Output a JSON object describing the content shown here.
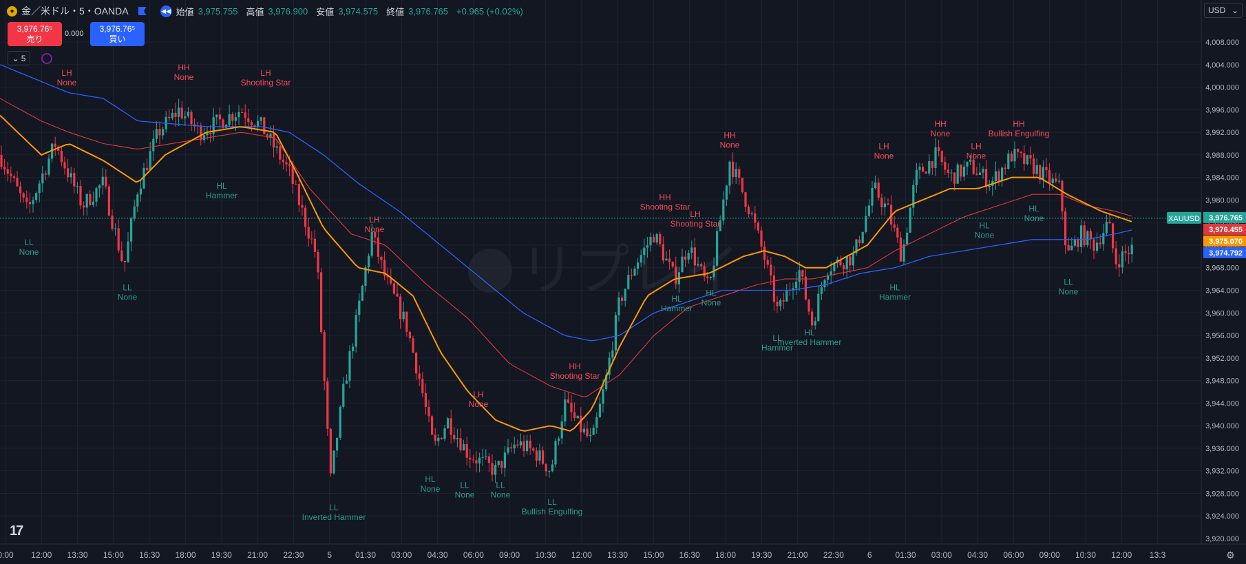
{
  "header": {
    "symbol_title": "金／米ドル・5・OANDA",
    "open_label": "始値",
    "open_value": "3,975.755",
    "high_label": "高値",
    "high_value": "3,976.900",
    "low_label": "安値",
    "low_value": "3,974.575",
    "close_label": "終値",
    "close_value": "3,976.765",
    "change": "+0.965 (+0.02%)"
  },
  "trade": {
    "sell_price": "3,976.76⁵",
    "sell_label": "売り",
    "spread": "0.000",
    "buy_price": "3,976.76⁵",
    "buy_label": "買い"
  },
  "toolbar": {
    "interval": "5",
    "currency": "USD"
  },
  "watermark": "リプレイ",
  "colors": {
    "background": "#131722",
    "grid": "#1e222d",
    "up": "#26a69a",
    "down": "#f23645",
    "ema_orange": "#ff9800",
    "ema_red": "#e0383e",
    "ema_blue": "#2962ff",
    "label_high": "#f44b58",
    "label_low": "#2a9d90"
  },
  "chart_data": {
    "type": "candlestick",
    "symbol": "XAUUSD",
    "ylim": [
      3920,
      4010
    ],
    "y_ticks": [
      "4,008.000",
      "4,004.000",
      "4,000.000",
      "3,996.000",
      "3,992.000",
      "3,988.000",
      "3,984.000",
      "3,980.000",
      "3,976.000",
      "3,972.000",
      "3,968.000",
      "3,964.000",
      "3,960.000",
      "3,956.000",
      "3,952.000",
      "3,948.000",
      "3,944.000",
      "3,940.000",
      "3,936.000",
      "3,932.000",
      "3,928.000",
      "3,924.000",
      "3,920.000"
    ],
    "x_ticks": [
      "0:00",
      "12:00",
      "13:30",
      "15:00",
      "16:30",
      "18:00",
      "19:30",
      "21:00",
      "22:30",
      "5",
      "01:30",
      "03:00",
      "04:30",
      "06:00",
      "09:00",
      "10:30",
      "12:00",
      "13:30",
      "15:00",
      "16:30",
      "18:00",
      "19:30",
      "21:00",
      "22:30",
      "6",
      "01:30",
      "03:00",
      "04:30",
      "06:00",
      "09:00",
      "10:30",
      "12:00",
      "13:3"
    ],
    "price_path_anchors": [
      [
        0,
        3988
      ],
      [
        40,
        3978
      ],
      [
        80,
        3990
      ],
      [
        120,
        3979
      ],
      [
        150,
        3983
      ],
      [
        180,
        3968
      ],
      [
        200,
        3982
      ],
      [
        230,
        3992
      ],
      [
        260,
        3996
      ],
      [
        290,
        3992
      ],
      [
        320,
        3994
      ],
      [
        350,
        3996
      ],
      [
        380,
        3993
      ],
      [
        420,
        3985
      ],
      [
        460,
        3970
      ],
      [
        480,
        3930
      ],
      [
        500,
        3947
      ],
      [
        520,
        3960
      ],
      [
        540,
        3974
      ],
      [
        560,
        3966
      ],
      [
        590,
        3958
      ],
      [
        610,
        3948
      ],
      [
        630,
        3936
      ],
      [
        650,
        3941
      ],
      [
        680,
        3935
      ],
      [
        720,
        3932
      ],
      [
        750,
        3937
      ],
      [
        780,
        3935
      ],
      [
        800,
        3932
      ],
      [
        820,
        3944
      ],
      [
        840,
        3940
      ],
      [
        860,
        3937
      ],
      [
        880,
        3948
      ],
      [
        900,
        3962
      ],
      [
        920,
        3968
      ],
      [
        950,
        3974
      ],
      [
        980,
        3966
      ],
      [
        1000,
        3972
      ],
      [
        1030,
        3964
      ],
      [
        1060,
        3987
      ],
      [
        1090,
        3978
      ],
      [
        1110,
        3970
      ],
      [
        1130,
        3960
      ],
      [
        1160,
        3968
      ],
      [
        1180,
        3958
      ],
      [
        1200,
        3968
      ],
      [
        1240,
        3970
      ],
      [
        1270,
        3982
      ],
      [
        1290,
        3978
      ],
      [
        1310,
        3970
      ],
      [
        1330,
        3984
      ],
      [
        1360,
        3988
      ],
      [
        1380,
        3984
      ],
      [
        1410,
        3986
      ],
      [
        1440,
        3983
      ],
      [
        1470,
        3988
      ],
      [
        1500,
        3986
      ],
      [
        1520,
        3984
      ],
      [
        1540,
        3982
      ],
      [
        1550,
        3970
      ],
      [
        1570,
        3974
      ],
      [
        1590,
        3972
      ],
      [
        1610,
        3976
      ],
      [
        1620,
        3969
      ],
      [
        1650,
        3972
      ]
    ],
    "ema_orange_anchors": [
      [
        0,
        3995
      ],
      [
        60,
        3988
      ],
      [
        100,
        3990
      ],
      [
        150,
        3987
      ],
      [
        200,
        3983
      ],
      [
        240,
        3988
      ],
      [
        300,
        3992
      ],
      [
        350,
        3993
      ],
      [
        400,
        3992
      ],
      [
        430,
        3985
      ],
      [
        470,
        3975
      ],
      [
        520,
        3968
      ],
      [
        560,
        3967
      ],
      [
        600,
        3963
      ],
      [
        640,
        3953
      ],
      [
        680,
        3946
      ],
      [
        720,
        3941
      ],
      [
        760,
        3939
      ],
      [
        800,
        3940
      ],
      [
        830,
        3939
      ],
      [
        860,
        3943
      ],
      [
        900,
        3954
      ],
      [
        940,
        3963
      ],
      [
        980,
        3966
      ],
      [
        1030,
        3967
      ],
      [
        1080,
        3970
      ],
      [
        1110,
        3971
      ],
      [
        1140,
        3970
      ],
      [
        1170,
        3968
      ],
      [
        1200,
        3968
      ],
      [
        1230,
        3970
      ],
      [
        1260,
        3972
      ],
      [
        1300,
        3978
      ],
      [
        1340,
        3980
      ],
      [
        1380,
        3982
      ],
      [
        1420,
        3982
      ],
      [
        1470,
        3984
      ],
      [
        1510,
        3984
      ],
      [
        1550,
        3981
      ],
      [
        1600,
        3978
      ],
      [
        1648,
        3976
      ]
    ],
    "ema_red_anchors": [
      [
        0,
        3998
      ],
      [
        60,
        3994
      ],
      [
        100,
        3992
      ],
      [
        150,
        3990
      ],
      [
        200,
        3989
      ],
      [
        250,
        3990
      ],
      [
        300,
        3991
      ],
      [
        350,
        3992
      ],
      [
        400,
        3991
      ],
      [
        450,
        3982
      ],
      [
        510,
        3974
      ],
      [
        560,
        3972
      ],
      [
        620,
        3965
      ],
      [
        680,
        3959
      ],
      [
        740,
        3951
      ],
      [
        800,
        3947
      ],
      [
        850,
        3945
      ],
      [
        900,
        3949
      ],
      [
        950,
        3956
      ],
      [
        1000,
        3961
      ],
      [
        1050,
        3963
      ],
      [
        1100,
        3965
      ],
      [
        1140,
        3966
      ],
      [
        1180,
        3966
      ],
      [
        1220,
        3967
      ],
      [
        1260,
        3968
      ],
      [
        1300,
        3971
      ],
      [
        1350,
        3974
      ],
      [
        1400,
        3977
      ],
      [
        1450,
        3979
      ],
      [
        1500,
        3981
      ],
      [
        1540,
        3981
      ],
      [
        1580,
        3979
      ],
      [
        1620,
        3978
      ],
      [
        1648,
        3977
      ]
    ],
    "ema_blue_anchors": [
      [
        0,
        4004
      ],
      [
        60,
        4001
      ],
      [
        100,
        3999
      ],
      [
        150,
        3998
      ],
      [
        200,
        3994
      ],
      [
        300,
        3993
      ],
      [
        380,
        3993
      ],
      [
        420,
        3992
      ],
      [
        470,
        3988
      ],
      [
        520,
        3983
      ],
      [
        580,
        3978
      ],
      [
        640,
        3972
      ],
      [
        700,
        3966
      ],
      [
        760,
        3960
      ],
      [
        820,
        3956
      ],
      [
        860,
        3955
      ],
      [
        900,
        3956
      ],
      [
        950,
        3960
      ],
      [
        1000,
        3962
      ],
      [
        1050,
        3964
      ],
      [
        1100,
        3964
      ],
      [
        1150,
        3964
      ],
      [
        1200,
        3965
      ],
      [
        1250,
        3967
      ],
      [
        1300,
        3968
      ],
      [
        1350,
        3970
      ],
      [
        1400,
        3971
      ],
      [
        1450,
        3972
      ],
      [
        1500,
        3973
      ],
      [
        1540,
        3973
      ],
      [
        1580,
        3973
      ],
      [
        1620,
        3974
      ],
      [
        1648,
        3974.8
      ]
    ],
    "pattern_labels": [
      {
        "a": "LH",
        "b": "None",
        "x": 97,
        "price": 4002,
        "kind": "high"
      },
      {
        "a": "HH",
        "b": "None",
        "x": 267,
        "price": 4003,
        "kind": "high"
      },
      {
        "a": "LH",
        "b": "Shooting Star",
        "x": 386,
        "price": 4002,
        "kind": "high"
      },
      {
        "a": "LL",
        "b": "None",
        "x": 42,
        "price": 3972,
        "kind": "low"
      },
      {
        "a": "LL",
        "b": "None",
        "x": 185,
        "price": 3964,
        "kind": "low"
      },
      {
        "a": "HL",
        "b": "Hammer",
        "x": 322,
        "price": 3982,
        "kind": "low"
      },
      {
        "a": "LH",
        "b": "None",
        "x": 544,
        "price": 3976,
        "kind": "high"
      },
      {
        "a": "LL",
        "b": "Inverted Hammer",
        "x": 485,
        "price": 3925,
        "kind": "low"
      },
      {
        "a": "HL",
        "b": "None",
        "x": 625,
        "price": 3930,
        "kind": "low"
      },
      {
        "a": "LL",
        "b": "None",
        "x": 675,
        "price": 3929,
        "kind": "low"
      },
      {
        "a": "LL",
        "b": "None",
        "x": 727,
        "price": 3929,
        "kind": "low"
      },
      {
        "a": "LH",
        "b": "None",
        "x": 695,
        "price": 3945,
        "kind": "high"
      },
      {
        "a": "LL",
        "b": "Bullish Engulfing",
        "x": 802,
        "price": 3926,
        "kind": "low"
      },
      {
        "a": "HH",
        "b": "Shooting Star",
        "x": 835,
        "price": 3950,
        "kind": "high"
      },
      {
        "a": "HH",
        "b": "Shooting Star",
        "x": 966,
        "price": 3980,
        "kind": "high"
      },
      {
        "a": "LH",
        "b": "Shooting Star",
        "x": 1010,
        "price": 3977,
        "kind": "high"
      },
      {
        "a": "HH",
        "b": "None",
        "x": 1060,
        "price": 3991,
        "kind": "high"
      },
      {
        "a": "HL",
        "b": "Hammer",
        "x": 983,
        "price": 3962,
        "kind": "low"
      },
      {
        "a": "HL",
        "b": "None",
        "x": 1033,
        "price": 3963,
        "kind": "low"
      },
      {
        "a": "LL",
        "b": "Hammer",
        "x": 1129,
        "price": 3955,
        "kind": "low"
      },
      {
        "a": "HL",
        "b": "Inverted Hammer",
        "x": 1176,
        "price": 3956,
        "kind": "low"
      },
      {
        "a": "LH",
        "b": "None",
        "x": 1284,
        "price": 3989,
        "kind": "high"
      },
      {
        "a": "HH",
        "b": "None",
        "x": 1366,
        "price": 3993,
        "kind": "high"
      },
      {
        "a": "LH",
        "b": "None",
        "x": 1418,
        "price": 3989,
        "kind": "high"
      },
      {
        "a": "HH",
        "b": "Bullish Engulfing",
        "x": 1480,
        "price": 3993,
        "kind": "high"
      },
      {
        "a": "HL",
        "b": "Hammer",
        "x": 1300,
        "price": 3964,
        "kind": "low"
      },
      {
        "a": "HL",
        "b": "None",
        "x": 1430,
        "price": 3975,
        "kind": "low"
      },
      {
        "a": "HL",
        "b": "None",
        "x": 1502,
        "price": 3978,
        "kind": "low"
      },
      {
        "a": "LL",
        "b": "None",
        "x": 1552,
        "price": 3965,
        "kind": "low"
      }
    ],
    "price_tags": [
      {
        "text": "3,976.765",
        "price": 3976.765,
        "color": "#26a69a"
      },
      {
        "text": "3,976.455",
        "price": 3976.455,
        "color": "#e0383e"
      },
      {
        "text": "3,975.070",
        "price": 3975.07,
        "color": "#ff9800"
      },
      {
        "text": "3,974.792",
        "price": 3974.792,
        "color": "#2962ff"
      }
    ],
    "symbol_tag": "XAUUSD",
    "current_price": 3976.765
  }
}
